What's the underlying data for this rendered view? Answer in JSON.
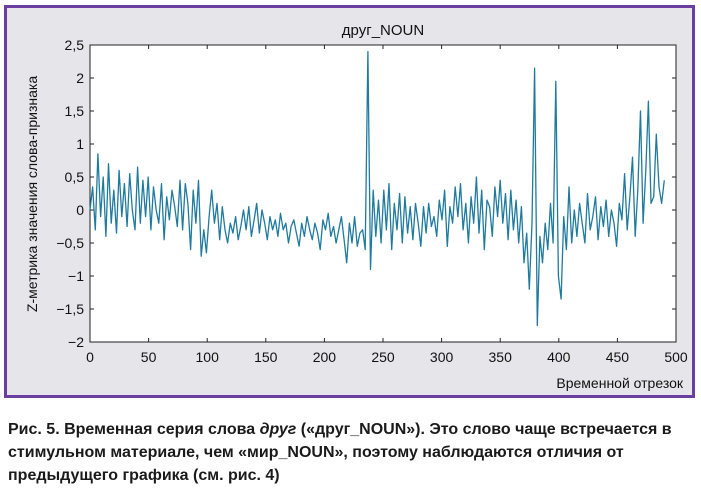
{
  "chart_data": {
    "type": "line",
    "title": "друг_NOUN",
    "xlabel": "Временной отрезок",
    "ylabel": "Z-метрика значения слова-признака",
    "xlim": [
      0,
      500
    ],
    "ylim": [
      -2,
      2.5
    ],
    "x_ticks": [
      "0",
      "50",
      "100",
      "150",
      "200",
      "250",
      "300",
      "350",
      "400",
      "450",
      "500"
    ],
    "y_ticks": [
      "2,5",
      "2",
      "1,5",
      "1",
      "0,5",
      "0",
      "−0,5",
      "−1",
      "−1,5",
      "−2"
    ],
    "grid": false,
    "line_color": "#1f7a9e",
    "series": [
      {
        "values": [
          0,
          0.35,
          -0.3,
          0.85,
          -0.1,
          0.5,
          -0.4,
          0.7,
          -0.2,
          0.3,
          -0.35,
          0.6,
          -0.1,
          0.4,
          -0.25,
          0.55,
          0.0,
          -0.3,
          0.65,
          -0.2,
          0.45,
          -0.1,
          0.5,
          -0.3,
          0.35,
          0.0,
          -0.2,
          0.4,
          -0.45,
          0.2,
          -0.15,
          0.3,
          0.05,
          -0.25,
          0.45,
          -0.3,
          0.4,
          0.1,
          -0.6,
          0.3,
          -0.2,
          0.45,
          -0.7,
          -0.3,
          -0.65,
          -0.1,
          0.3,
          -0.2,
          0.1,
          -0.45,
          0.05,
          -0.3,
          -0.5,
          -0.2,
          -0.35,
          -0.1,
          -0.45,
          -0.25,
          0.0,
          -0.3,
          0.05,
          -0.4,
          -0.15,
          0.1,
          -0.35,
          0.0,
          -0.2,
          -0.45,
          -0.1,
          -0.3,
          -0.15,
          -0.4,
          -0.05,
          -0.3,
          -0.2,
          -0.5,
          -0.25,
          -0.15,
          -0.35,
          -0.55,
          -0.2,
          -0.4,
          -0.1,
          -0.3,
          -0.45,
          -0.2,
          -0.35,
          -0.6,
          -0.15,
          -0.3,
          -0.05,
          -0.4,
          -0.25,
          -0.5,
          -0.3,
          -0.1,
          -0.45,
          -0.8,
          -0.2,
          -0.5,
          -0.1,
          -0.55,
          -0.35,
          -0.3,
          -0.6,
          2.4,
          -0.9,
          0.3,
          -0.4,
          0.15,
          -0.5,
          0.3,
          -0.3,
          0.4,
          -0.6,
          0.1,
          -0.3,
          0.25,
          -0.5,
          0.2,
          -0.35,
          0.05,
          -0.45,
          0.1,
          -0.2,
          -0.55,
          0.05,
          -0.35,
          0.1,
          -0.25,
          -0.1,
          -0.4,
          0.15,
          -0.15,
          0.3,
          -0.55,
          0.05,
          -0.2,
          0.35,
          -0.1,
          0.4,
          -0.3,
          0.1,
          -0.5,
          0.2,
          -0.2,
          0.5,
          -0.35,
          0.3,
          -0.6,
          0.15,
          0.05,
          -0.4,
          0.35,
          -0.1,
          0.45,
          -0.2,
          0.25,
          -0.45,
          0.3,
          -0.3,
          0.15,
          -0.5,
          0.05,
          -0.8,
          -0.35,
          -1.2,
          -0.2,
          2.15,
          -1.75,
          -0.4,
          -0.8,
          -0.2,
          -0.6,
          0.1,
          -0.5,
          1.95,
          -1.0,
          -1.35,
          -0.1,
          -0.6,
          0.35,
          -0.5,
          0.0,
          -0.4,
          0.1,
          -0.2,
          -0.5,
          0.25,
          -0.3,
          -0.1,
          0.2,
          -0.45,
          0.05,
          -0.25,
          0.15,
          -0.4,
          0.0,
          -0.2,
          -0.55,
          0.1,
          -0.15,
          0.55,
          -0.3,
          0.2,
          0.8,
          -0.4,
          0.3,
          1.5,
          -0.2,
          0.6,
          1.65,
          0.1,
          0.2,
          1.15,
          0.35,
          0.1,
          0.45
        ]
      }
    ]
  },
  "caption": {
    "part1": "Рис. 5. Временная серия слова ",
    "word_italic": "друг",
    "part2": " («друг_NOUN»). Это слово чаще встречается в стимульном материале, чем «мир_NOUN», поэтому наблюдаются отличия от предыдущего графика (см. рис. 4)"
  }
}
